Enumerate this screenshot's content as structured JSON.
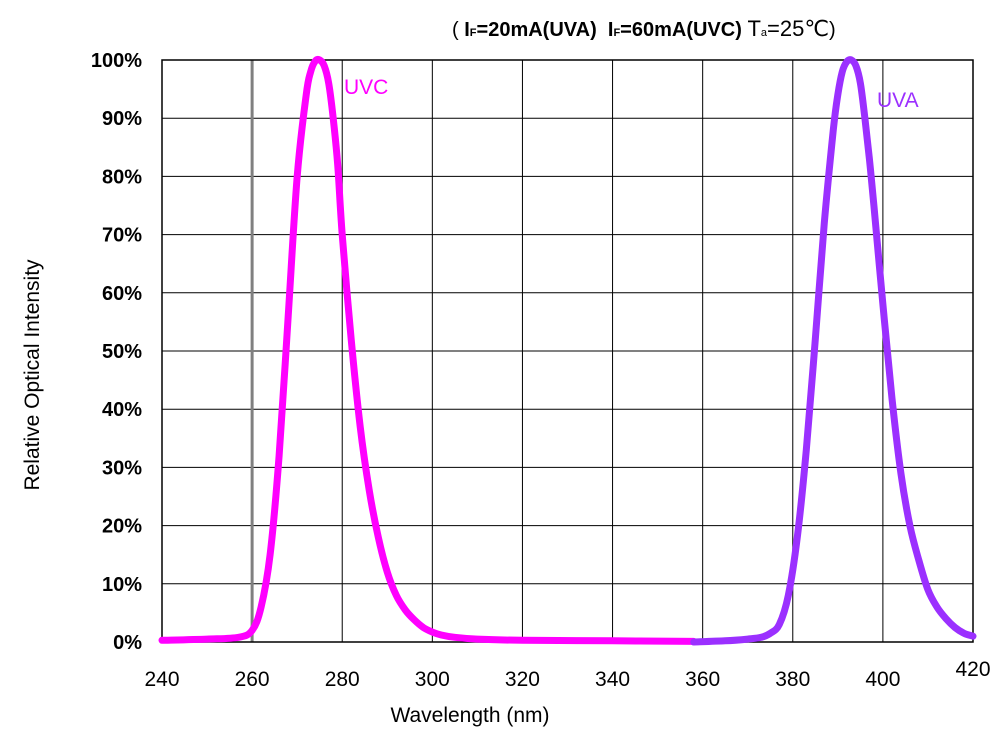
{
  "conditions": {
    "open": "(",
    "i1": "I",
    "f1": "F",
    "rest1": "=20mA(UVA)",
    "i2": "I",
    "f2": "F",
    "rest2": "=60mA(UVC)",
    "t": "T",
    "a": "a",
    "temp": "=25℃",
    "close": ")"
  },
  "chart_data": {
    "type": "line",
    "title": "",
    "xlabel": "Wavelength (nm)",
    "ylabel": "Relative Optical Intensity",
    "xlim": [
      240,
      420
    ],
    "ylim": [
      0,
      100
    ],
    "grid": true,
    "x_ticks": [
      240,
      260,
      280,
      300,
      320,
      340,
      360,
      380,
      400,
      420
    ],
    "y_ticks": [
      0,
      10,
      20,
      30,
      40,
      50,
      60,
      70,
      80,
      90,
      100
    ],
    "x_tick_labels": [
      "240",
      "260",
      "280",
      "300",
      "320",
      "340",
      "360",
      "380",
      "400",
      "420"
    ],
    "y_tick_labels": [
      "0%",
      "10%",
      "20%",
      "30%",
      "40%",
      "50%",
      "60%",
      "70%",
      "80%",
      "90%",
      "100%"
    ],
    "series": [
      {
        "name": "UVC",
        "color": "#ff00ff",
        "x": [
          240,
          250,
          257,
          260,
          262,
          264,
          266,
          268,
          270,
          272,
          273,
          274,
          275,
          276,
          277,
          278,
          279,
          280,
          282,
          284,
          286,
          288,
          290,
          292,
          294,
          296,
          298,
          300,
          302,
          305,
          310,
          320,
          340,
          358
        ],
        "y": [
          0.3,
          0.5,
          0.8,
          2,
          6,
          15,
          32,
          56,
          80,
          94,
          98,
          99.8,
          100,
          99,
          96,
          90,
          82,
          70,
          52,
          37,
          26,
          18,
          12,
          8,
          5.5,
          3.8,
          2.5,
          1.7,
          1.2,
          0.8,
          0.5,
          0.3,
          0.2,
          0.1
        ]
      },
      {
        "name": "UVA",
        "color": "#9b30ff",
        "x": [
          358,
          365,
          370,
          373,
          375,
          377,
          379,
          381,
          383,
          385,
          387,
          389,
          390,
          391,
          392,
          393,
          394,
          395,
          396,
          397,
          398,
          400,
          402,
          404,
          406,
          408,
          410,
          412,
          414,
          416,
          418,
          420
        ],
        "y": [
          0,
          0.2,
          0.5,
          0.8,
          1.5,
          3,
          8,
          18,
          33,
          52,
          72,
          88,
          94,
          98,
          99.7,
          100,
          99,
          96,
          90,
          83,
          75,
          58,
          42,
          29,
          20,
          14,
          9,
          6,
          4,
          2.5,
          1.5,
          1
        ]
      }
    ],
    "annotations": [
      "UVC",
      "UVA"
    ]
  }
}
